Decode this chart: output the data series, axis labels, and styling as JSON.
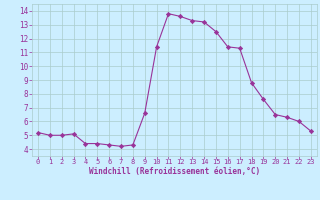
{
  "x": [
    0,
    1,
    2,
    3,
    4,
    5,
    6,
    7,
    8,
    9,
    10,
    11,
    12,
    13,
    14,
    15,
    16,
    17,
    18,
    19,
    20,
    21,
    22,
    23
  ],
  "y": [
    5.2,
    5.0,
    5.0,
    5.1,
    4.4,
    4.4,
    4.3,
    4.2,
    4.3,
    6.6,
    11.4,
    13.8,
    13.6,
    13.3,
    13.2,
    12.5,
    11.4,
    11.3,
    8.8,
    7.6,
    6.5,
    6.3,
    6.0,
    5.3
  ],
  "line_color": "#993399",
  "marker": "D",
  "marker_size": 2.2,
  "bg_color": "#cceeff",
  "grid_color": "#aacccc",
  "xlabel": "Windchill (Refroidissement éolien,°C)",
  "xlim": [
    -0.5,
    23.5
  ],
  "ylim": [
    3.5,
    14.5
  ],
  "xticks": [
    0,
    1,
    2,
    3,
    4,
    5,
    6,
    7,
    8,
    9,
    10,
    11,
    12,
    13,
    14,
    15,
    16,
    17,
    18,
    19,
    20,
    21,
    22,
    23
  ],
  "yticks": [
    4,
    5,
    6,
    7,
    8,
    9,
    10,
    11,
    12,
    13,
    14
  ],
  "tick_color": "#993399",
  "label_color": "#993399"
}
